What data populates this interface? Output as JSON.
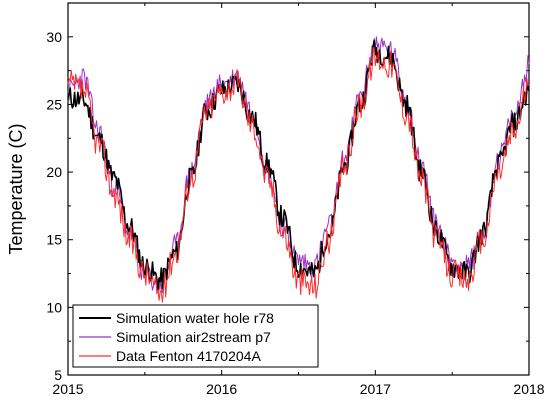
{
  "chart_data": {
    "type": "line",
    "title": "",
    "xlabel": "",
    "ylabel": "Temperature (C)",
    "xlim": [
      2015,
      2018
    ],
    "ylim": [
      5,
      32.5
    ],
    "x_ticks": [
      "2015",
      "2016",
      "2017",
      "2018"
    ],
    "y_ticks": [
      "5",
      "10",
      "15",
      "20",
      "25",
      "30"
    ],
    "grid": false,
    "legend_position": "bottom-left",
    "x": [
      2015.0,
      2015.1,
      2015.2,
      2015.3,
      2015.4,
      2015.5,
      2015.6,
      2015.7,
      2015.8,
      2015.9,
      2016.0,
      2016.1,
      2016.2,
      2016.3,
      2016.4,
      2016.5,
      2016.6,
      2016.7,
      2016.8,
      2016.9,
      2017.0,
      2017.1,
      2017.2,
      2017.3,
      2017.4,
      2017.5,
      2017.6,
      2017.7,
      2017.8,
      2017.9,
      2018.0
    ],
    "series": [
      {
        "name": "Simulation water hole r78",
        "color": "#000000",
        "values": [
          25.5,
          25.3,
          22.5,
          19.5,
          16.0,
          13.0,
          12.0,
          14.0,
          19.5,
          24.5,
          26.0,
          26.5,
          24.0,
          20.5,
          16.5,
          13.0,
          12.5,
          15.5,
          20.5,
          25.0,
          29.0,
          28.5,
          25.0,
          20.0,
          15.5,
          13.0,
          12.5,
          15.5,
          20.5,
          23.5,
          26.0
        ]
      },
      {
        "name": "Simulation air2stream p7",
        "color": "#9b30c8",
        "values": [
          26.0,
          27.0,
          23.0,
          19.0,
          15.5,
          12.5,
          11.5,
          14.5,
          20.0,
          25.0,
          26.5,
          27.0,
          24.5,
          20.0,
          16.0,
          13.5,
          13.0,
          16.0,
          21.0,
          25.5,
          29.5,
          29.0,
          25.5,
          20.5,
          16.0,
          13.5,
          13.0,
          15.5,
          21.0,
          24.0,
          28.0
        ]
      },
      {
        "name": "Data Fenton 4170204A",
        "color": "#ff2a2a",
        "values": [
          26.5,
          26.0,
          22.0,
          18.5,
          15.0,
          12.5,
          11.0,
          14.0,
          19.5,
          24.5,
          26.0,
          26.5,
          23.5,
          19.5,
          15.5,
          12.0,
          11.5,
          15.0,
          20.5,
          25.0,
          28.5,
          28.0,
          24.5,
          19.5,
          15.0,
          12.5,
          12.0,
          15.0,
          20.0,
          23.0,
          26.5
        ]
      }
    ]
  }
}
